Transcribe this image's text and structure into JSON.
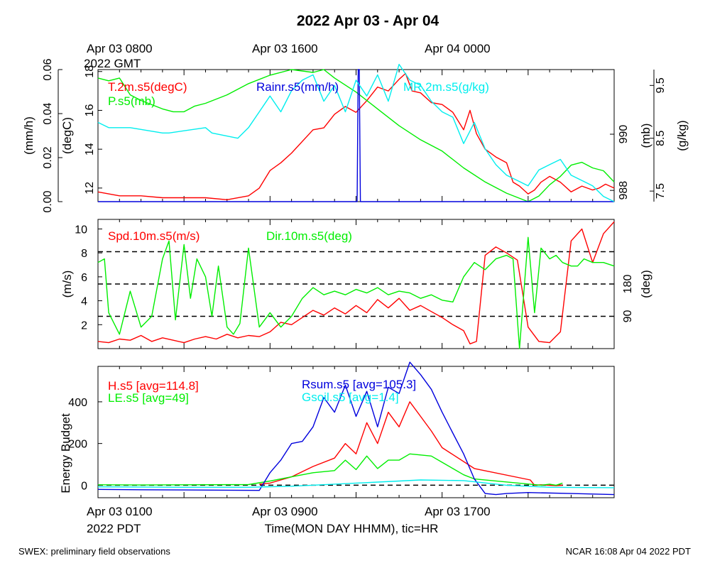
{
  "title": "2022 Apr 03 - Apr 04",
  "footer_left": "SWEX: preliminary field observations",
  "footer_right": "NCAR 16:08 Apr 04 2022 PDT",
  "top_time_labels": [
    {
      "text": "Apr 03 0800",
      "line2": "2022 GMT",
      "hour": 0
    },
    {
      "text": "Apr 03 1600",
      "line2": "",
      "hour": 8
    },
    {
      "text": "Apr 04 0000",
      "line2": "",
      "hour": 16
    }
  ],
  "bottom_time_labels": [
    {
      "text": "Apr 03 0100",
      "line2": "2022 PDT",
      "hour": 0
    },
    {
      "text": "Apr 03 0900",
      "line2": "",
      "hour": 8
    },
    {
      "text": "Apr 03 1700",
      "line2": "",
      "hour": 16
    }
  ],
  "xlabel": "Time(MON DAY HHMM), tic=HR",
  "colors": {
    "red": "#ff0000",
    "green": "#00ee00",
    "blue": "#0000dd",
    "cyan": "#00eeee",
    "black": "#000000"
  },
  "chart_data": [
    {
      "type": "line",
      "panel": "top",
      "x_unit": "hours after Apr 03 0100 PDT",
      "xlim": [
        0,
        24
      ],
      "axes": [
        {
          "id": "rain",
          "side": "left",
          "label": "(mm/h)",
          "ticks": [
            "0.00",
            "0.02",
            "0.04",
            "0.06"
          ],
          "ylim": [
            0,
            0.06
          ]
        },
        {
          "id": "temp",
          "side": "left",
          "label": "(degC)",
          "ticks": [
            "12",
            "14",
            "16",
            "18"
          ],
          "ylim": [
            11.3,
            18.1
          ]
        },
        {
          "id": "pres",
          "side": "right",
          "label": "(mb)",
          "ticks": [
            "988",
            "990"
          ],
          "ylim": [
            987.6,
            992.3
          ]
        },
        {
          "id": "mr",
          "side": "right",
          "label": "(g/kg)",
          "ticks": [
            "7.5",
            "8.5",
            "9.5"
          ],
          "ylim": [
            7.3,
            9.8
          ]
        }
      ],
      "series": [
        {
          "name": "T.2m.s5(degC)",
          "color": "red",
          "axis": "temp",
          "x": [
            0,
            0.5,
            1,
            2,
            3,
            4,
            5,
            6,
            7,
            7.5,
            8,
            8.5,
            9,
            10,
            10.5,
            11,
            11.5,
            12,
            12.5,
            13,
            13.5,
            14,
            14.3,
            14.6,
            15,
            15.5,
            16,
            16.5,
            17,
            17.3,
            17.6,
            18,
            18.5,
            19,
            19.3,
            19.6,
            20,
            20.3,
            20.6,
            21,
            21.5,
            22,
            22.5,
            23,
            23.3,
            23.6,
            24
          ],
          "y": [
            11.8,
            11.7,
            11.6,
            11.6,
            11.5,
            11.5,
            11.5,
            11.4,
            11.6,
            12.0,
            12.9,
            13.3,
            13.8,
            15.0,
            15.1,
            15.8,
            16.2,
            15.9,
            16.5,
            17.2,
            17.0,
            17.6,
            17.9,
            17.0,
            16.9,
            16.4,
            16.3,
            15.9,
            15.0,
            16.0,
            14.8,
            14.0,
            13.6,
            13.3,
            12.3,
            12.1,
            11.7,
            11.9,
            12.3,
            12.6,
            12.3,
            11.8,
            12.1,
            11.9,
            12.0,
            12.2,
            12.0
          ]
        },
        {
          "name": "P.s5(mb)",
          "color": "green",
          "axis": "pres",
          "x": [
            0,
            0.5,
            1,
            1.5,
            2,
            3,
            3.5,
            4,
            4.5,
            5,
            6,
            7,
            8,
            9,
            10,
            10.5,
            11,
            12,
            13,
            14,
            15,
            16,
            17,
            18,
            19,
            20,
            20.5,
            21,
            21.5,
            22,
            22.5,
            23,
            23.5,
            24
          ],
          "y": [
            992.0,
            991.9,
            992.0,
            991.4,
            991.2,
            990.9,
            990.8,
            990.8,
            991.0,
            991.1,
            991.4,
            991.8,
            992.1,
            992.3,
            992.2,
            992.3,
            992.0,
            991.5,
            990.9,
            990.3,
            989.8,
            989.4,
            988.8,
            988.3,
            987.9,
            987.6,
            987.8,
            988.2,
            988.5,
            988.9,
            989.0,
            988.8,
            988.7,
            988.3
          ]
        },
        {
          "name": "Rainr.s5(mm/h)",
          "color": "blue",
          "axis": "rain",
          "x": [
            0,
            12.05,
            12.1,
            12.15,
            12.2,
            24
          ],
          "y": [
            0,
            0,
            0.06,
            0.06,
            0,
            0
          ]
        },
        {
          "name": "MR.2m.s5(g/kg)",
          "color": "cyan",
          "axis": "mr",
          "x": [
            0,
            0.5,
            1,
            1.5,
            3,
            3.3,
            5,
            5.3,
            6.5,
            7,
            7.5,
            8,
            8.5,
            9,
            9.5,
            10,
            10.5,
            11,
            11.5,
            12,
            12.5,
            13,
            13.5,
            14,
            14.5,
            15,
            15.5,
            16,
            16.5,
            17,
            17.5,
            18,
            18.5,
            19,
            19.5,
            20,
            20.5,
            21,
            21.5,
            22,
            22.5,
            23,
            23.5,
            24
          ],
          "y": [
            8.8,
            8.7,
            8.7,
            8.7,
            8.6,
            8.6,
            8.7,
            8.6,
            8.5,
            8.7,
            9.0,
            9.3,
            9.0,
            9.4,
            9.6,
            9.7,
            9.2,
            9.5,
            9.0,
            9.6,
            9.3,
            9.7,
            9.2,
            9.9,
            9.6,
            9.5,
            9.2,
            9.0,
            8.9,
            8.4,
            8.8,
            8.3,
            8.0,
            7.8,
            7.7,
            7.6,
            7.9,
            8.0,
            8.1,
            7.8,
            7.7,
            7.6,
            7.4,
            7.3
          ]
        }
      ],
      "legend": [
        "T.2m.s5(degC)",
        "P.s5(mb)",
        "Rainr.s5(mm/h)",
        "MR.2m.s5(g/kg)"
      ]
    },
    {
      "type": "line",
      "panel": "middle",
      "x_unit": "hours after Apr 03 0100 PDT",
      "xlim": [
        0,
        24
      ],
      "axes": [
        {
          "id": "spd",
          "side": "left",
          "label": "(m/s)",
          "ticks": [
            "2",
            "4",
            "6",
            "8",
            "10"
          ],
          "ylim": [
            0,
            10.8
          ]
        },
        {
          "id": "dir",
          "side": "right",
          "label": "(deg)",
          "ticks": [
            "90",
            "180"
          ],
          "ylim": [
            0,
            360
          ]
        }
      ],
      "reference_lines": [
        {
          "axis": "dir",
          "value": 90
        },
        {
          "axis": "dir",
          "value": 180
        },
        {
          "axis": "dir",
          "value": 270
        }
      ],
      "series": [
        {
          "name": "Spd.10m.s5(m/s)",
          "color": "red",
          "axis": "spd",
          "x": [
            0,
            0.5,
            1,
            1.5,
            2,
            2.5,
            3,
            3.5,
            4,
            4.5,
            5,
            5.5,
            6,
            6.5,
            7,
            7.5,
            8,
            8.5,
            9,
            9.5,
            10,
            10.5,
            11,
            11.5,
            12,
            12.5,
            13,
            13.5,
            14,
            14.5,
            15,
            15.5,
            16,
            16.5,
            17,
            17.3,
            17.6,
            18,
            18.5,
            19,
            19.5,
            20,
            20.5,
            21,
            21.5,
            22,
            22.5,
            23,
            23.5,
            24
          ],
          "y": [
            0.6,
            0.5,
            0.8,
            0.7,
            1.1,
            0.6,
            0.9,
            0.7,
            0.5,
            0.8,
            1.0,
            0.8,
            1.2,
            0.9,
            1.1,
            1.0,
            1.4,
            2.2,
            2.0,
            2.6,
            3.2,
            2.8,
            3.4,
            2.9,
            3.6,
            3.0,
            4.1,
            3.4,
            4.2,
            3.2,
            3.6,
            3.1,
            2.6,
            2.0,
            1.5,
            0.4,
            0.6,
            7.8,
            8.5,
            8.0,
            7.4,
            1.8,
            0.6,
            0.5,
            1.4,
            9.0,
            10.0,
            7.2,
            9.6,
            10.6
          ]
        },
        {
          "name": "Dir.10m.s5(deg)",
          "color": "green",
          "axis": "dir",
          "x": [
            0,
            0.3,
            0.5,
            1,
            1.5,
            2,
            2.5,
            3,
            3.3,
            3.6,
            4,
            4.3,
            4.6,
            5,
            5.3,
            5.6,
            6,
            6.3,
            6.6,
            7,
            7.5,
            8,
            8.5,
            9,
            9.5,
            10,
            10.5,
            11,
            11.5,
            12,
            12.5,
            13,
            13.5,
            14,
            14.5,
            15,
            15.5,
            16,
            16.5,
            17,
            17.5,
            18,
            18.5,
            19,
            19.3,
            19.6,
            20,
            20.3,
            20.6,
            21,
            21.3,
            21.6,
            22,
            22.3,
            22.6,
            23,
            23.5,
            24
          ],
          "y": [
            240,
            250,
            100,
            40,
            160,
            60,
            90,
            250,
            300,
            80,
            290,
            140,
            250,
            200,
            90,
            230,
            60,
            40,
            70,
            280,
            60,
            100,
            60,
            90,
            140,
            170,
            150,
            160,
            150,
            165,
            155,
            170,
            150,
            160,
            155,
            140,
            150,
            135,
            130,
            200,
            240,
            220,
            250,
            260,
            250,
            0,
            310,
            100,
            280,
            250,
            260,
            240,
            230,
            230,
            250,
            240,
            240,
            230
          ]
        }
      ],
      "legend": [
        "Spd.10m.s5(m/s)",
        "Dir.10m.s5(deg)"
      ]
    },
    {
      "type": "line",
      "panel": "bottom",
      "x_unit": "hours after Apr 03 0100 PDT",
      "xlim": [
        0,
        24
      ],
      "axes": [
        {
          "id": "energy",
          "side": "left",
          "label": "Energy Budget",
          "ticks": [
            "0",
            "200",
            "400"
          ],
          "ylim": [
            -60,
            570
          ]
        }
      ],
      "reference_lines": [
        {
          "axis": "energy",
          "value": 0
        }
      ],
      "series": [
        {
          "name": "H.s5 [avg=114.8]",
          "color": "red",
          "axis": "energy",
          "x": [
            7.5,
            8,
            9,
            10,
            11,
            11.5,
            12,
            12.5,
            13,
            13.5,
            14,
            14.5,
            15,
            15.5,
            16,
            17.5,
            20.1,
            20.3,
            20.6,
            21.3,
            21.6
          ],
          "y": [
            5,
            10,
            40,
            90,
            130,
            200,
            150,
            300,
            200,
            350,
            280,
            400,
            330,
            260,
            180,
            80,
            25,
            0,
            2,
            -2,
            0
          ]
        },
        {
          "name": "LE.s5 [avg=49]",
          "color": "green",
          "axis": "energy",
          "x": [
            0,
            2,
            4,
            7,
            8,
            9,
            10,
            11,
            11.5,
            12,
            12.5,
            13,
            13.5,
            14,
            14.5,
            15,
            15.5,
            16,
            16.5,
            17,
            17.5,
            20.6,
            21,
            21.3,
            21.6
          ],
          "y": [
            2,
            1,
            2,
            3,
            20,
            40,
            60,
            70,
            120,
            75,
            140,
            80,
            120,
            120,
            150,
            145,
            140,
            110,
            80,
            50,
            30,
            0,
            5,
            0,
            10
          ]
        },
        {
          "name": "Rsum.s5 [avg=105.3]",
          "color": "blue",
          "axis": "energy",
          "x": [
            0,
            2,
            4,
            6,
            7.5,
            8,
            8.5,
            9,
            9.5,
            10,
            10.5,
            11,
            11.5,
            12,
            12.5,
            13,
            13.5,
            14,
            14.5,
            15,
            15.5,
            16,
            16.5,
            17,
            17.5,
            18,
            18.5,
            19,
            20,
            22,
            24
          ],
          "y": [
            -20,
            -22,
            -23,
            -24,
            -25,
            60,
            120,
            200,
            210,
            280,
            420,
            350,
            480,
            330,
            450,
            280,
            470,
            440,
            590,
            530,
            460,
            350,
            250,
            150,
            30,
            -40,
            -45,
            -40,
            -35,
            -40,
            -45
          ]
        },
        {
          "name": "Gsoil.s5 [avg=1.4]",
          "color": "cyan",
          "axis": "energy",
          "x": [
            0,
            4,
            7,
            9,
            11,
            13,
            15,
            17,
            19,
            21,
            24
          ],
          "y": [
            -8,
            -10,
            -10,
            -5,
            5,
            15,
            25,
            22,
            0,
            -10,
            -12
          ]
        }
      ],
      "legend": [
        "H.s5 [avg=114.8]",
        "LE.s5 [avg=49]",
        "Rsum.s5 [avg=105.3]",
        "Gsoil.s5 [avg=1.4]"
      ]
    }
  ]
}
